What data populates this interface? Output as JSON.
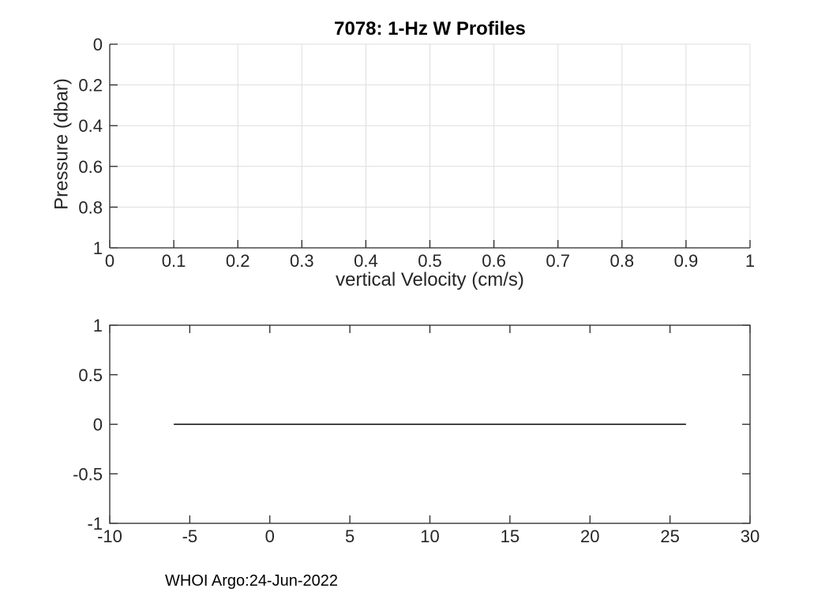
{
  "figure": {
    "footer": "WHOI Argo:24-Jun-2022",
    "background": "#ffffff"
  },
  "colors": {
    "axis": "#262626",
    "grid": "#dddddd",
    "tick_label": "#262626",
    "title": "#000000",
    "data_line": "#000000"
  },
  "chart_data": [
    {
      "id": "w-profiles-top",
      "type": "line",
      "title": "7078: 1-Hz W Profiles",
      "xlabel": "vertical Velocity (cm/s)",
      "ylabel": "Pressure (dbar)",
      "xlim": [
        0,
        1
      ],
      "ylim": [
        0,
        1
      ],
      "y_reversed": true,
      "xticks": [
        0,
        0.1,
        0.2,
        0.3,
        0.4,
        0.5,
        0.6,
        0.7,
        0.8,
        0.9,
        1
      ],
      "xtick_labels": [
        "0",
        "0.1",
        "0.2",
        "0.3",
        "0.4",
        "0.5",
        "0.6",
        "0.7",
        "0.8",
        "0.9",
        "1"
      ],
      "yticks": [
        0,
        0.2,
        0.4,
        0.6,
        0.8,
        1
      ],
      "ytick_labels": [
        "0",
        "0.2",
        "0.4",
        "0.6",
        "0.8",
        "1"
      ],
      "grid": true,
      "box": false,
      "legend": null,
      "series": []
    },
    {
      "id": "w-timeseries-bottom",
      "type": "line",
      "title": "",
      "xlabel": "",
      "ylabel": "",
      "xlim": [
        -10,
        30
      ],
      "ylim": [
        -1,
        1
      ],
      "y_reversed": false,
      "xticks": [
        -10,
        -5,
        0,
        5,
        10,
        15,
        20,
        25,
        30
      ],
      "xtick_labels": [
        "-10",
        "-5",
        "0",
        "5",
        "10",
        "15",
        "20",
        "25",
        "30"
      ],
      "yticks": [
        -1,
        -0.5,
        0,
        0.5,
        1
      ],
      "ytick_labels": [
        "-1",
        "-0.5",
        "0",
        "0.5",
        "1"
      ],
      "grid": false,
      "box": true,
      "legend": null,
      "series": [
        {
          "name": "zero-velocity-line",
          "color": "#000000",
          "x": [
            -6,
            26
          ],
          "y": [
            0,
            0
          ]
        }
      ]
    }
  ]
}
